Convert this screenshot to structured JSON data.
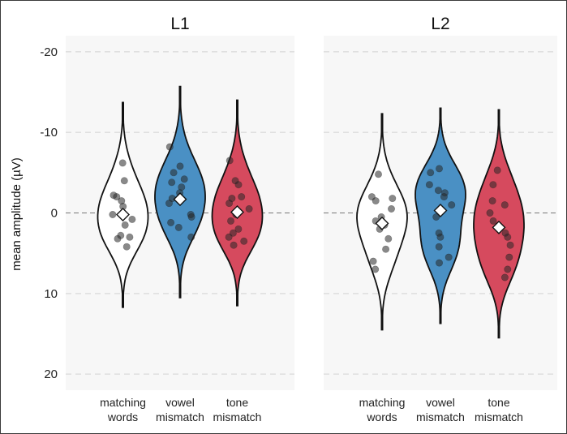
{
  "chart_data": {
    "type": "violin",
    "ylabel": "mean amplitude (µV)",
    "y_axis_inverted": true,
    "ylim": [
      -22,
      22
    ],
    "yticks": [
      {
        "value": -20,
        "label": "-20"
      },
      {
        "value": -10,
        "label": "-10"
      },
      {
        "value": 0,
        "label": "0"
      },
      {
        "value": 10,
        "label": "10"
      },
      {
        "value": 20,
        "label": "20"
      }
    ],
    "categories": [
      {
        "line1": "matching",
        "line2": "words"
      },
      {
        "line1": "vowel",
        "line2": "mismatch"
      },
      {
        "line1": "tone",
        "line2": "mismatch"
      }
    ],
    "category_colors": [
      "#ffffff",
      "#4a90c4",
      "#d64a5e"
    ],
    "reference_line": 0,
    "grid": true,
    "panels": [
      {
        "title": "L1",
        "groups": [
          {
            "mean": 0.2,
            "points": [
              -6.2,
              -4.0,
              -2.2,
              -2.0,
              -1.5,
              -0.8,
              0.2,
              0.8,
              1.5,
              2.8,
              3.2,
              3.0,
              4.2
            ]
          },
          {
            "mean": -1.7,
            "points": [
              -8.2,
              -5.8,
              -5.0,
              -4.2,
              -3.8,
              -3.2,
              -2.5,
              -1.8,
              -1.2,
              0.2,
              0.5,
              1.2,
              1.8,
              3.0
            ]
          },
          {
            "mean": -0.1,
            "points": [
              -6.5,
              -4.0,
              -3.5,
              -2.0,
              -1.8,
              -1.2,
              -0.5,
              0.2,
              1.0,
              2.0,
              2.5,
              3.0,
              3.5,
              4.0
            ]
          }
        ]
      },
      {
        "title": "L2",
        "groups": [
          {
            "mean": 1.3,
            "points": [
              -4.8,
              -2.0,
              -1.8,
              -1.5,
              -0.5,
              0.5,
              1.0,
              1.5,
              2.0,
              3.2,
              4.5,
              6.0,
              7.0
            ]
          },
          {
            "mean": -0.3,
            "points": [
              -5.5,
              -5.0,
              -3.5,
              -2.8,
              -2.5,
              -2.0,
              -1.0,
              0.5,
              2.5,
              3.0,
              4.2,
              5.5,
              6.2
            ]
          },
          {
            "mean": 1.8,
            "points": [
              -5.3,
              -3.5,
              -1.5,
              -1.0,
              0.0,
              1.0,
              2.5,
              3.0,
              4.0,
              5.5,
              7.0,
              8.0
            ]
          }
        ]
      }
    ]
  }
}
